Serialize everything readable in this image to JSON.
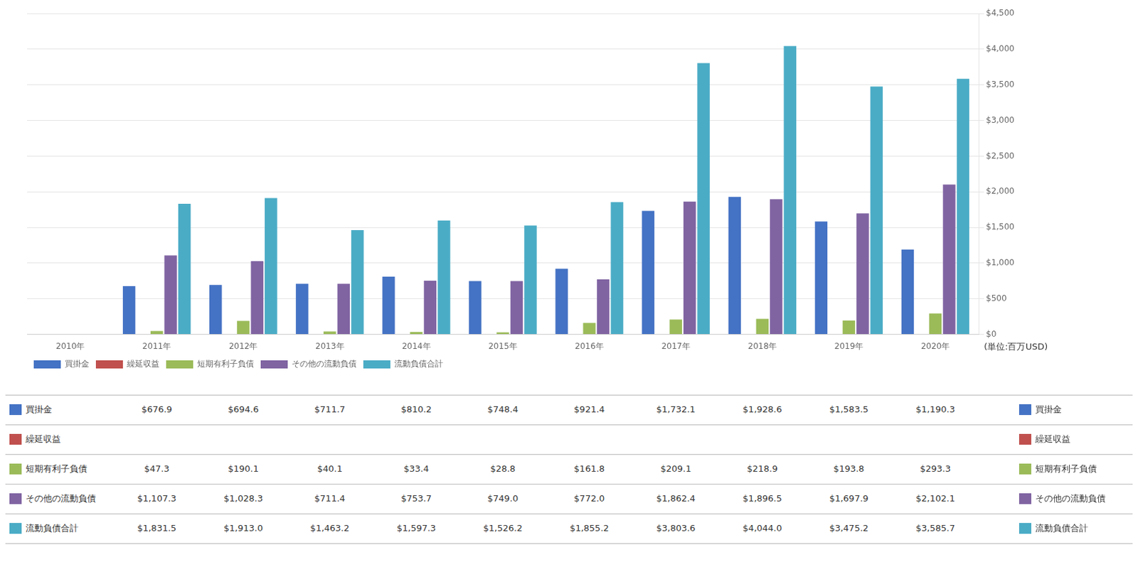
{
  "chart_data": {
    "type": "bar",
    "categories": [
      "2010年",
      "2011年",
      "2012年",
      "2013年",
      "2014年",
      "2015年",
      "2016年",
      "2017年",
      "2018年",
      "2019年",
      "2020年"
    ],
    "series": [
      {
        "name": "買掛金",
        "color": "#4472C4",
        "values": [
          0,
          676.9,
          694.6,
          711.7,
          810.2,
          748.4,
          921.4,
          1732.1,
          1928.6,
          1583.5,
          1190.3
        ],
        "value_labels": [
          null,
          "$676.9",
          "$694.6",
          "$711.7",
          "$810.2",
          "$748.4",
          "$921.4",
          "$1,732.1",
          "$1,928.6",
          "$1,583.5",
          "$1,190.3"
        ]
      },
      {
        "name": "繰延収益",
        "color": "#C0504D",
        "values": [
          0,
          0,
          0,
          0,
          0,
          0,
          0,
          0,
          0,
          0,
          0
        ],
        "value_labels": [
          null,
          null,
          null,
          null,
          null,
          null,
          null,
          null,
          null,
          null,
          null
        ]
      },
      {
        "name": "短期有利子負債",
        "color": "#9BBB59",
        "values": [
          0,
          47.3,
          190.1,
          40.1,
          33.4,
          28.8,
          161.8,
          209.1,
          218.9,
          193.8,
          293.3
        ],
        "value_labels": [
          null,
          "$47.3",
          "$190.1",
          "$40.1",
          "$33.4",
          "$28.8",
          "$161.8",
          "$209.1",
          "$218.9",
          "$193.8",
          "$293.3"
        ]
      },
      {
        "name": "その他の流動負債",
        "color": "#8064A2",
        "values": [
          0,
          1107.3,
          1028.3,
          711.4,
          753.7,
          749.0,
          772.0,
          1862.4,
          1896.5,
          1697.9,
          2102.1
        ],
        "value_labels": [
          null,
          "$1,107.3",
          "$1,028.3",
          "$711.4",
          "$753.7",
          "$749.0",
          "$772.0",
          "$1,862.4",
          "$1,896.5",
          "$1,697.9",
          "$2,102.1"
        ]
      },
      {
        "name": "流動負債合計",
        "color": "#4BACC6",
        "values": [
          0,
          1831.5,
          1913.0,
          1463.2,
          1597.3,
          1526.2,
          1855.2,
          3803.6,
          4044.0,
          3475.2,
          3585.7
        ],
        "value_labels": [
          null,
          "$1,831.5",
          "$1,913.0",
          "$1,463.2",
          "$1,597.3",
          "$1,526.2",
          "$1,855.2",
          "$3,803.6",
          "$4,044.0",
          "$3,475.2",
          "$3,585.7"
        ]
      }
    ],
    "ylim": [
      0,
      4500
    ],
    "yticks": [
      {
        "value": 0,
        "label": "$0"
      },
      {
        "value": 500,
        "label": "$500"
      },
      {
        "value": 1000,
        "label": "$1,000"
      },
      {
        "value": 1500,
        "label": "$1,500"
      },
      {
        "value": 2000,
        "label": "$2,000"
      },
      {
        "value": 2500,
        "label": "$2,500"
      },
      {
        "value": 3000,
        "label": "$3,000"
      },
      {
        "value": 3500,
        "label": "$3,500"
      },
      {
        "value": 4000,
        "label": "$4,000"
      },
      {
        "value": 4500,
        "label": "$4,500"
      }
    ],
    "grid": true,
    "legend": "lower left",
    "annotations": [
      "(単位:百万USD)"
    ]
  }
}
